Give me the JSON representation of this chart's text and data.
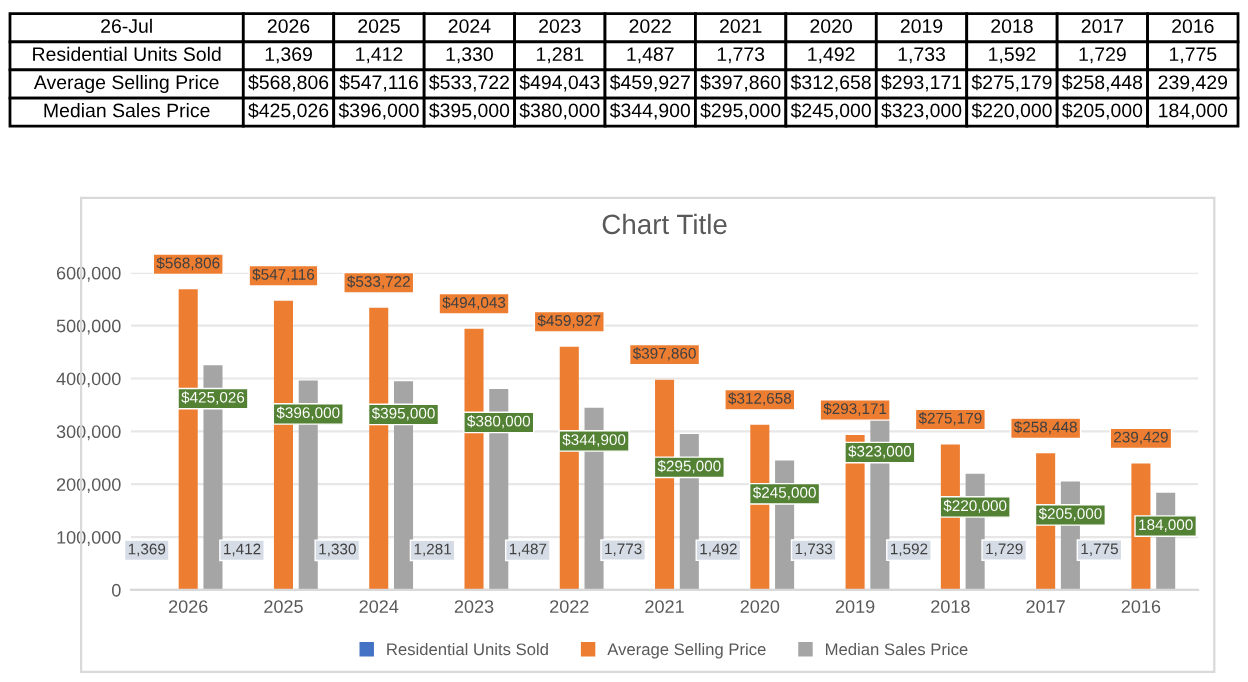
{
  "chart_data": {
    "type": "bar",
    "title": "Chart Title",
    "categories": [
      "2026",
      "2025",
      "2024",
      "2023",
      "2022",
      "2021",
      "2020",
      "2019",
      "2018",
      "2017",
      "2016"
    ],
    "series": [
      {
        "name": "Residential Units Sold",
        "color": "#4472c4",
        "values": [
          1369,
          1412,
          1330,
          1281,
          1487,
          1773,
          1492,
          1733,
          1592,
          1729,
          1775
        ],
        "value_labels": [
          "1,369",
          "1,412",
          "1,330",
          "1,281",
          "1,487",
          "1,773",
          "1,492",
          "1,733",
          "1,592",
          "1,729",
          "1,775"
        ]
      },
      {
        "name": "Average Selling Price",
        "color": "#ed7d31",
        "values": [
          568806,
          547116,
          533722,
          494043,
          459927,
          397860,
          312658,
          293171,
          275179,
          258448,
          239429
        ],
        "value_labels": [
          "$568,806",
          "$547,116",
          "$533,722",
          "$494,043",
          "$459,927",
          "$397,860",
          "$312,658",
          "$293,171",
          "$275,179",
          "$258,448",
          "239,429"
        ]
      },
      {
        "name": "Median Sales Price",
        "color": "#a5a5a5",
        "values": [
          425026,
          396000,
          395000,
          380000,
          344900,
          295000,
          245000,
          323000,
          220000,
          205000,
          184000
        ],
        "value_labels": [
          "$425,026",
          "$396,000",
          "$395,000",
          "$380,000",
          "$344,900",
          "$295,000",
          "$245,000",
          "$323,000",
          "$220,000",
          "$205,000",
          "184,000"
        ]
      }
    ],
    "ylim": [
      0,
      600000
    ],
    "yticks": [
      0,
      {
        "value": 100000,
        "label": "100,000"
      },
      {
        "value": 200000,
        "label": "200,000"
      },
      {
        "value": 300000,
        "label": "300,000"
      },
      {
        "value": 400000,
        "label": "400,000"
      },
      {
        "value": 500000,
        "label": "500,000"
      },
      {
        "value": 600000,
        "label": "600,000"
      }
    ],
    "grid": "y",
    "legend": "bottom",
    "annotations": [
      "26-Jul"
    ]
  }
}
